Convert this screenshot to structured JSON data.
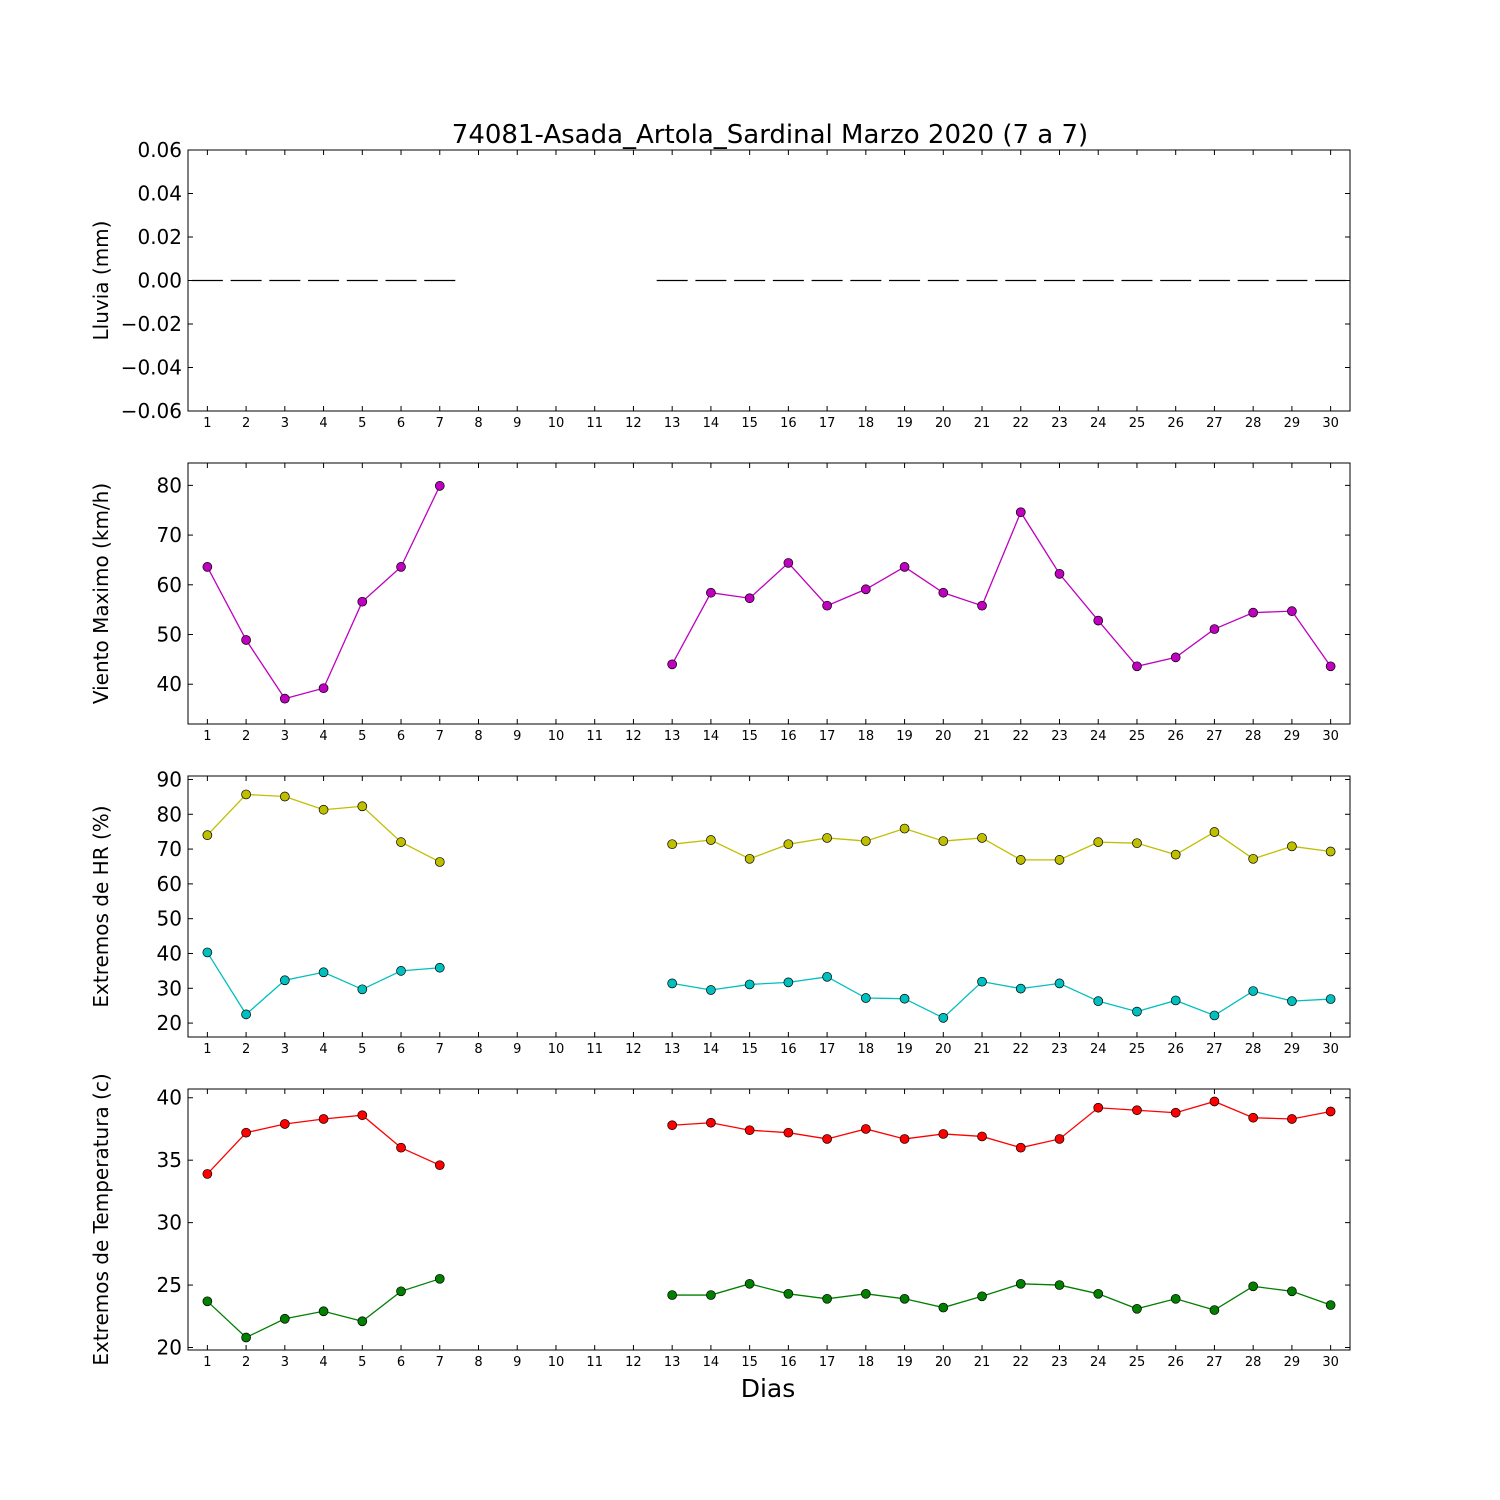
{
  "chart_data": {
    "type": "line",
    "title": "74081-Asada_Artola_Sardinal Marzo 2020  (7 a 7)",
    "xlabel": "Dias",
    "x": [
      1,
      2,
      3,
      4,
      5,
      6,
      7,
      8,
      9,
      10,
      11,
      12,
      13,
      14,
      15,
      16,
      17,
      18,
      19,
      20,
      21,
      22,
      23,
      24,
      25,
      26,
      27,
      28,
      29,
      30
    ],
    "xlim": [
      0.5,
      30.5
    ],
    "panels": [
      {
        "id": "lluvia",
        "ylabel": "Lluvia (mm)",
        "ylim": [
          -0.06,
          0.06
        ],
        "yticks": [
          0.06,
          0.04,
          0.02,
          0.0,
          -0.02,
          -0.04,
          -0.06
        ],
        "ytick_labels": [
          "0.06",
          "0.04",
          "0.02",
          "0.00",
          "−0.02",
          "−0.04",
          "−0.06"
        ],
        "bar_style": "horizontal-dash",
        "series": [
          {
            "color": "#000000",
            "values": [
              0,
              0,
              0,
              0,
              0,
              0,
              0,
              null,
              null,
              null,
              null,
              null,
              0,
              0,
              0,
              0,
              0,
              0,
              0,
              0,
              0,
              0,
              0,
              0,
              0,
              0,
              0,
              0,
              0,
              0
            ]
          }
        ]
      },
      {
        "id": "viento",
        "ylabel": "Viento Maximo (km/h)",
        "ylim": [
          32,
          84.5
        ],
        "yticks": [
          40,
          50,
          60,
          70,
          80
        ],
        "ytick_labels": [
          "40",
          "50",
          "60",
          "70",
          "80"
        ],
        "series": [
          {
            "color": "#bf00bf",
            "values": [
              63.6,
              48.9,
              37.1,
              39.2,
              56.6,
              63.6,
              79.9,
              null,
              null,
              null,
              null,
              null,
              44.0,
              58.4,
              57.3,
              64.4,
              55.8,
              59.1,
              63.6,
              58.4,
              55.8,
              74.6,
              62.2,
              52.8,
              43.6,
              45.4,
              51.1,
              54.4,
              54.7,
              43.6
            ]
          }
        ]
      },
      {
        "id": "hr",
        "ylabel": "Extremos de HR (%)",
        "ylim": [
          16,
          91
        ],
        "yticks": [
          20,
          30,
          40,
          50,
          60,
          70,
          80,
          90
        ],
        "ytick_labels": [
          "20",
          "30",
          "40",
          "50",
          "60",
          "70",
          "80",
          "90"
        ],
        "series": [
          {
            "color": "#bfbf00",
            "values": [
              74.0,
              85.7,
              85.1,
              81.3,
              82.3,
              72.0,
              66.3,
              null,
              null,
              null,
              null,
              null,
              71.4,
              72.6,
              67.2,
              71.4,
              73.2,
              72.3,
              75.9,
              72.3,
              73.2,
              66.9,
              66.9,
              72.0,
              71.7,
              68.4,
              74.9,
              67.2,
              70.8,
              69.3
            ]
          },
          {
            "color": "#00bfbf",
            "values": [
              40.3,
              22.5,
              32.3,
              34.6,
              29.7,
              35.0,
              35.9,
              null,
              null,
              null,
              null,
              null,
              31.4,
              29.5,
              31.1,
              31.7,
              33.3,
              27.2,
              27.0,
              21.5,
              31.9,
              29.9,
              31.4,
              26.3,
              23.3,
              26.5,
              22.2,
              29.2,
              26.3,
              26.9
            ]
          }
        ]
      },
      {
        "id": "temp",
        "ylabel": "Extremos de Temperatura (c)",
        "ylim": [
          19.8,
          40.7
        ],
        "yticks": [
          20,
          25,
          30,
          35,
          40
        ],
        "ytick_labels": [
          "20",
          "25",
          "30",
          "35",
          "40"
        ],
        "series": [
          {
            "color": "#ff0000",
            "values": [
              33.9,
              37.2,
              37.9,
              38.3,
              38.6,
              36.0,
              34.6,
              null,
              null,
              null,
              null,
              null,
              37.8,
              38.0,
              37.4,
              37.2,
              36.7,
              37.5,
              36.7,
              37.1,
              36.9,
              36.0,
              36.7,
              39.2,
              39.0,
              38.8,
              39.7,
              38.4,
              38.3,
              38.9
            ]
          },
          {
            "color": "#007f00",
            "values": [
              23.7,
              20.8,
              22.3,
              22.9,
              22.1,
              24.5,
              25.5,
              null,
              null,
              null,
              null,
              null,
              24.2,
              24.2,
              25.1,
              24.3,
              23.9,
              24.3,
              23.9,
              23.2,
              24.1,
              25.1,
              25.0,
              24.3,
              23.1,
              23.9,
              23.0,
              24.9,
              24.5,
              23.4
            ]
          }
        ]
      }
    ]
  }
}
